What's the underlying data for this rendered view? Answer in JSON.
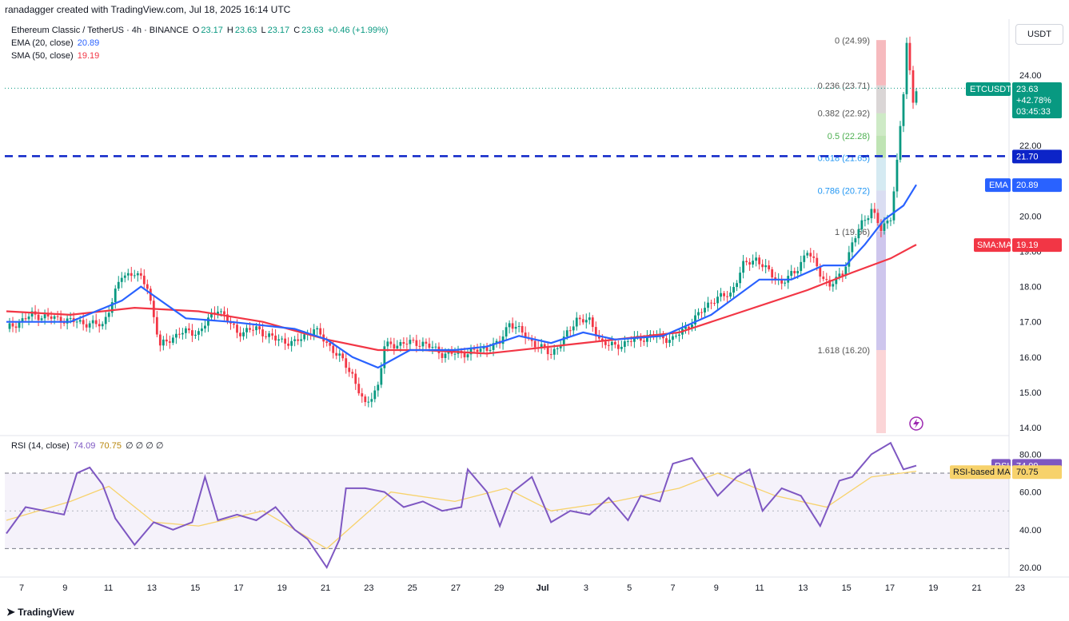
{
  "header": {
    "credit": "ranadagger created with TradingView.com, Jul 18, 2025 16:14 UTC"
  },
  "legend": {
    "symbol": "Ethereum Classic / TetherUS · 4h · BINANCE",
    "o_label": "O",
    "o": "23.17",
    "h_label": "H",
    "h": "23.63",
    "l_label": "L",
    "l": "23.17",
    "c_label": "C",
    "c": "23.63",
    "change": "+0.46 (+1.99%)",
    "ema_label": "EMA (20, close)",
    "ema_value": "20.89",
    "sma_label": "SMA (50, close)",
    "sma_value": "19.19",
    "rsi_label": "RSI (14, close)",
    "rsi_value": "74.09",
    "rsi_ma_value": "70.75",
    "rsi_extra": "∅ ∅ ∅ ∅"
  },
  "currency_button": "USDT",
  "price_tags": {
    "symbol": "ETCUSDT",
    "price": "23.63",
    "pct": "+42.78%",
    "countdown": "03:45:33",
    "hline": "21.70",
    "ema_tag": "EMA",
    "ema_value": "20.89",
    "sma_tag": "SMA:MA",
    "sma_value": "19.19",
    "rsi_tag": "RSI",
    "rsi_value": "74.09",
    "rsi_ma_tag": "RSI-based MA",
    "rsi_ma_value": "70.75"
  },
  "footer": {
    "brand": "TradingView"
  },
  "colors": {
    "up": "#089981",
    "down": "#f23645",
    "ema": "#2962ff",
    "sma": "#f23645",
    "rsi": "#7e57c2",
    "rsi_ma": "#f7d26b",
    "hline": "#0c24c8"
  },
  "chart_data": [
    {
      "type": "candlestick",
      "title": "Ethereum Classic / TetherUS · 4h · BINANCE",
      "x_ticks": [
        "7",
        "9",
        "11",
        "13",
        "15",
        "17",
        "19",
        "21",
        "23",
        "25",
        "27",
        "29",
        "Jul",
        "3",
        "5",
        "7",
        "9",
        "11",
        "13",
        "15",
        "17",
        "19",
        "21",
        "23"
      ],
      "y_ticks": [
        "14.00",
        "15.00",
        "16.00",
        "17.00",
        "18.00",
        "19.00",
        "20.00",
        "22.00",
        "24.00"
      ],
      "ylim": [
        14.0,
        25.0
      ],
      "horizontal_line": 21.7,
      "fibonacci": [
        {
          "level": "0",
          "price": 24.99
        },
        {
          "level": "0.236",
          "price": 23.71
        },
        {
          "level": "0.382",
          "price": 22.92
        },
        {
          "level": "0.5",
          "price": 22.28
        },
        {
          "level": "0.618",
          "price": 21.65
        },
        {
          "level": "0.786",
          "price": 20.72
        },
        {
          "level": "1",
          "price": 19.56
        },
        {
          "level": "1.618",
          "price": 16.2
        }
      ],
      "close_path": [
        [
          0,
          16.8
        ],
        [
          8,
          17.2
        ],
        [
          15,
          17.1
        ],
        [
          22,
          17.0
        ],
        [
          30,
          16.9
        ],
        [
          36,
          18.3
        ],
        [
          40,
          18.4
        ],
        [
          44,
          18.0
        ],
        [
          48,
          16.3
        ],
        [
          54,
          16.7
        ],
        [
          60,
          16.7
        ],
        [
          66,
          17.4
        ],
        [
          72,
          16.7
        ],
        [
          78,
          16.8
        ],
        [
          84,
          16.5
        ],
        [
          90,
          16.4
        ],
        [
          96,
          16.8
        ],
        [
          100,
          16.4
        ],
        [
          104,
          16.0
        ],
        [
          108,
          15.5
        ],
        [
          112,
          14.6
        ],
        [
          116,
          15.2
        ],
        [
          118,
          16.3
        ],
        [
          124,
          16.4
        ],
        [
          130,
          16.4
        ],
        [
          136,
          16.1
        ],
        [
          142,
          16.1
        ],
        [
          148,
          16.2
        ],
        [
          154,
          16.4
        ],
        [
          157,
          17.0
        ],
        [
          162,
          16.6
        ],
        [
          166,
          16.3
        ],
        [
          170,
          16.1
        ],
        [
          174,
          16.5
        ],
        [
          178,
          17.1
        ],
        [
          182,
          17.0
        ],
        [
          186,
          16.4
        ],
        [
          190,
          16.3
        ],
        [
          196,
          16.5
        ],
        [
          202,
          16.6
        ],
        [
          208,
          16.5
        ],
        [
          214,
          17.0
        ],
        [
          220,
          17.6
        ],
        [
          226,
          17.8
        ],
        [
          230,
          18.6
        ],
        [
          234,
          18.8
        ],
        [
          238,
          18.4
        ],
        [
          242,
          18.1
        ],
        [
          246,
          18.4
        ],
        [
          250,
          19.0
        ],
        [
          254,
          18.4
        ],
        [
          257,
          18.0
        ],
        [
          261,
          18.4
        ],
        [
          264,
          19.2
        ],
        [
          267,
          19.8
        ],
        [
          270,
          20.2
        ],
        [
          273,
          19.6
        ],
        [
          276,
          20.0
        ],
        [
          278,
          21.5
        ],
        [
          280,
          23.5
        ],
        [
          281,
          24.9
        ],
        [
          283,
          23.3
        ],
        [
          284,
          23.63
        ]
      ],
      "ema20_path": [
        [
          0,
          17.0
        ],
        [
          20,
          17.0
        ],
        [
          36,
          17.6
        ],
        [
          42,
          18.0
        ],
        [
          56,
          17.1
        ],
        [
          70,
          17.0
        ],
        [
          90,
          16.8
        ],
        [
          100,
          16.5
        ],
        [
          108,
          16.0
        ],
        [
          116,
          15.7
        ],
        [
          126,
          16.2
        ],
        [
          140,
          16.2
        ],
        [
          150,
          16.3
        ],
        [
          160,
          16.6
        ],
        [
          170,
          16.4
        ],
        [
          180,
          16.7
        ],
        [
          190,
          16.5
        ],
        [
          205,
          16.6
        ],
        [
          220,
          17.2
        ],
        [
          235,
          18.2
        ],
        [
          245,
          18.2
        ],
        [
          255,
          18.6
        ],
        [
          262,
          18.6
        ],
        [
          268,
          19.2
        ],
        [
          274,
          19.9
        ],
        [
          280,
          20.3
        ],
        [
          284,
          20.89
        ]
      ],
      "sma50_path": [
        [
          0,
          17.3
        ],
        [
          20,
          17.2
        ],
        [
          40,
          17.4
        ],
        [
          60,
          17.3
        ],
        [
          80,
          17.0
        ],
        [
          100,
          16.5
        ],
        [
          116,
          16.2
        ],
        [
          130,
          16.2
        ],
        [
          150,
          16.1
        ],
        [
          170,
          16.3
        ],
        [
          190,
          16.5
        ],
        [
          210,
          16.7
        ],
        [
          230,
          17.3
        ],
        [
          250,
          17.9
        ],
        [
          264,
          18.4
        ],
        [
          276,
          18.8
        ],
        [
          284,
          19.19
        ]
      ]
    },
    {
      "type": "line",
      "title": "RSI (14, close)",
      "y_ticks": [
        "20.00",
        "40.00",
        "60.00",
        "80.00"
      ],
      "ylim": [
        18,
        90
      ],
      "bands": [
        30,
        70
      ],
      "series": [
        {
          "name": "RSI",
          "path": [
            [
              0,
              38
            ],
            [
              6,
              52
            ],
            [
              12,
              50
            ],
            [
              18,
              48
            ],
            [
              22,
              70
            ],
            [
              26,
              73
            ],
            [
              30,
              64
            ],
            [
              34,
              46
            ],
            [
              40,
              32
            ],
            [
              46,
              44
            ],
            [
              52,
              40
            ],
            [
              58,
              44
            ],
            [
              62,
              68
            ],
            [
              66,
              45
            ],
            [
              72,
              48
            ],
            [
              78,
              45
            ],
            [
              84,
              52
            ],
            [
              90,
              40
            ],
            [
              94,
              35
            ],
            [
              98,
              25
            ],
            [
              100,
              20
            ],
            [
              104,
              35
            ],
            [
              106,
              62
            ],
            [
              112,
              62
            ],
            [
              118,
              60
            ],
            [
              124,
              52
            ],
            [
              130,
              55
            ],
            [
              136,
              50
            ],
            [
              142,
              52
            ],
            [
              144,
              72
            ],
            [
              150,
              60
            ],
            [
              154,
              42
            ],
            [
              158,
              60
            ],
            [
              164,
              68
            ],
            [
              170,
              44
            ],
            [
              176,
              50
            ],
            [
              182,
              48
            ],
            [
              188,
              57
            ],
            [
              194,
              45
            ],
            [
              198,
              58
            ],
            [
              204,
              55
            ],
            [
              208,
              75
            ],
            [
              214,
              78
            ],
            [
              218,
              68
            ],
            [
              222,
              58
            ],
            [
              228,
              68
            ],
            [
              232,
              72
            ],
            [
              236,
              50
            ],
            [
              242,
              62
            ],
            [
              248,
              58
            ],
            [
              254,
              42
            ],
            [
              260,
              66
            ],
            [
              264,
              68
            ],
            [
              270,
              80
            ],
            [
              276,
              86
            ],
            [
              280,
              72
            ],
            [
              284,
              74
            ]
          ]
        },
        {
          "name": "RSI-based MA",
          "path": [
            [
              0,
              45
            ],
            [
              20,
              55
            ],
            [
              32,
              63
            ],
            [
              46,
              44
            ],
            [
              60,
              42
            ],
            [
              80,
              50
            ],
            [
              100,
              30
            ],
            [
              110,
              45
            ],
            [
              120,
              60
            ],
            [
              140,
              55
            ],
            [
              156,
              62
            ],
            [
              170,
              50
            ],
            [
              190,
              55
            ],
            [
              210,
              62
            ],
            [
              222,
              70
            ],
            [
              240,
              58
            ],
            [
              256,
              52
            ],
            [
              270,
              68
            ],
            [
              284,
              71
            ]
          ]
        }
      ]
    }
  ]
}
